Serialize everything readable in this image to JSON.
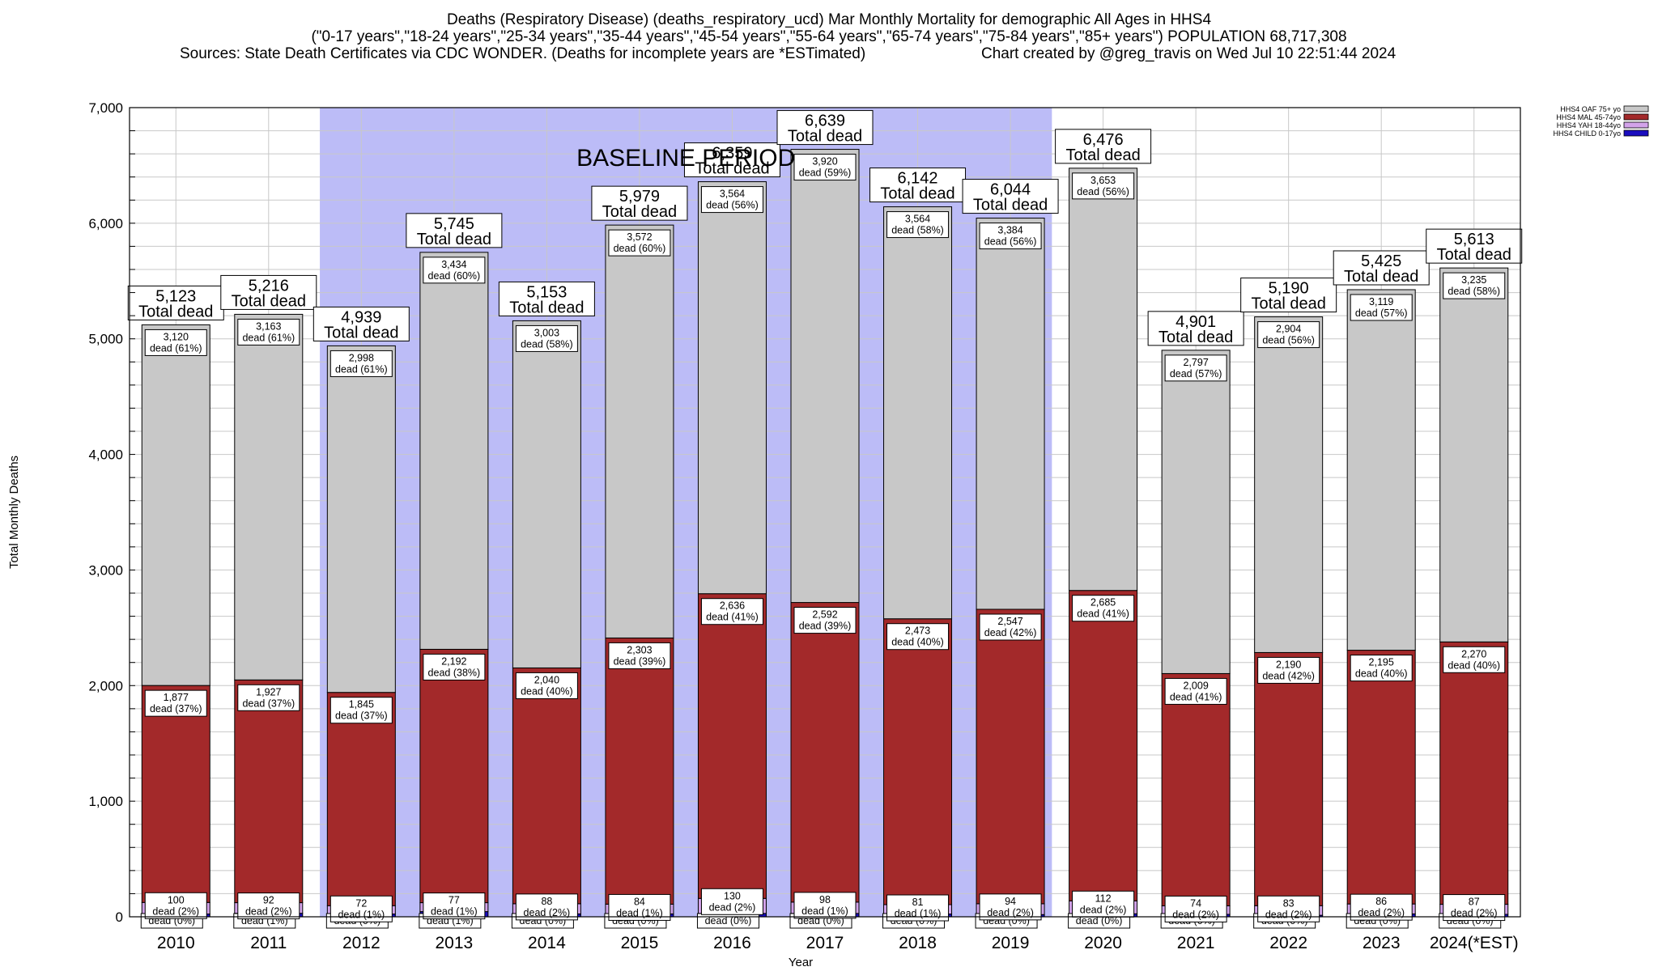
{
  "header": {
    "title": "Deaths (Respiratory Disease) (deaths_respiratory_ucd) Mar Monthly Mortality for demographic All Ages in HHS4",
    "subtitle": "(\"0-17 years\",\"18-24 years\",\"25-34 years\",\"35-44 years\",\"45-54 years\",\"55-64 years\",\"65-74 years\",\"75-84 years\",\"85+ years\") POPULATION 68,717,308",
    "sources": "Sources: State Death Certificates via CDC WONDER. (Deaths for incomplete years are *ESTimated)",
    "created": "Chart created by @greg_travis on Wed Jul 10 22:51:44 2024"
  },
  "colors": {
    "oaf": "#c8c8c8",
    "mal": "#a3292a",
    "yah": "#d3a3ea",
    "child": "#1a0dbf",
    "baseline": "#bcbcf7",
    "grid": "#c8c8c8"
  },
  "chart_data": {
    "type": "bar",
    "stacked": true,
    "xlabel": "Year",
    "ylabel": "Total Monthly Deaths",
    "ylim": [
      0,
      7000
    ],
    "yticks": [
      "0",
      "1,000",
      "2,000",
      "3,000",
      "4,000",
      "5,000",
      "6,000",
      "7,000"
    ],
    "grid": true,
    "legend_position": "top-right",
    "categories": [
      "2010",
      "2011",
      "2012",
      "2013",
      "2014",
      "2015",
      "2016",
      "2017",
      "2018",
      "2019",
      "2020",
      "2021",
      "2022",
      "2023",
      "2024(*EST)"
    ],
    "baseline_label": "BASELINE PERIOD",
    "baseline_range": [
      "2012",
      "2019"
    ],
    "total_suffix": "Total dead",
    "totals": [
      "5,123",
      "5,216",
      "4,939",
      "5,745",
      "5,153",
      "5,979",
      "6,359",
      "6,639",
      "6,142",
      "6,044",
      "6,476",
      "4,901",
      "5,190",
      "5,425",
      "5,613"
    ],
    "series": [
      {
        "name": "HHS4 CHILD 0-17yo",
        "color_key": "child",
        "values": [
          24,
          30,
          24,
          45,
          25,
          25,
          29,
          29,
          24,
          19,
          26,
          21,
          13,
          25,
          21
        ],
        "labels": [
          "",
          "",
          "",
          "",
          "",
          "",
          "",
          "",
          "",
          "",
          "",
          "",
          "",
          "",
          ""
        ],
        "sublabels": [
          "dead (0%)",
          "dead (1%)",
          "dead (0%)",
          "dead (1%)",
          "dead (0%)",
          "dead (0%)",
          "dead (0%)",
          "dead (0%)",
          "dead (0%)",
          "dead (0%)",
          "dead (0%)",
          "dead (0%)",
          "dead (0%)",
          "dead (0%)",
          "dead (0%)"
        ]
      },
      {
        "name": "HHS4 YAH 18-44yo",
        "color_key": "yah",
        "values": [
          100,
          92,
          72,
          77,
          88,
          84,
          130,
          98,
          81,
          94,
          112,
          74,
          83,
          86,
          87
        ],
        "labels": [
          "100",
          "92",
          "72",
          "77",
          "88",
          "84",
          "130",
          "98",
          "81",
          "94",
          "112",
          "74",
          "83",
          "86",
          "87"
        ],
        "sublabels": [
          "dead (2%)",
          "dead (2%)",
          "dead (1%)",
          "dead (1%)",
          "dead (2%)",
          "dead (1%)",
          "dead (2%)",
          "dead (1%)",
          "dead (1%)",
          "dead (2%)",
          "dead (2%)",
          "dead (2%)",
          "dead (2%)",
          "dead (2%)",
          "dead (2%)"
        ]
      },
      {
        "name": "HHS4 MAL 45-74yo",
        "color_key": "mal",
        "values": [
          1877,
          1927,
          1845,
          2192,
          2040,
          2303,
          2636,
          2592,
          2473,
          2547,
          2685,
          2009,
          2190,
          2195,
          2270
        ],
        "labels": [
          "1,877",
          "1,927",
          "1,845",
          "2,192",
          "2,040",
          "2,303",
          "2,636",
          "2,592",
          "2,473",
          "2,547",
          "2,685",
          "2,009",
          "2,190",
          "2,195",
          "2,270"
        ],
        "sublabels": [
          "dead (37%)",
          "dead (37%)",
          "dead (37%)",
          "dead (38%)",
          "dead (40%)",
          "dead (39%)",
          "dead (41%)",
          "dead (39%)",
          "dead (40%)",
          "dead (42%)",
          "dead (41%)",
          "dead (41%)",
          "dead (42%)",
          "dead (40%)",
          "dead (40%)"
        ]
      },
      {
        "name": "HHS4 OAF 75+ yo",
        "color_key": "oaf",
        "values": [
          3120,
          3163,
          2998,
          3434,
          3003,
          3572,
          3564,
          3920,
          3564,
          3384,
          3653,
          2797,
          2904,
          3119,
          3235
        ],
        "labels": [
          "3,120",
          "3,163",
          "2,998",
          "3,434",
          "3,003",
          "3,572",
          "3,564",
          "3,920",
          "3,564",
          "3,384",
          "3,653",
          "2,797",
          "2,904",
          "3,119",
          "3,235"
        ],
        "sublabels": [
          "dead (61%)",
          "dead (61%)",
          "dead (61%)",
          "dead (60%)",
          "dead (58%)",
          "dead (60%)",
          "dead (56%)",
          "dead (59%)",
          "dead (58%)",
          "dead (56%)",
          "dead (56%)",
          "dead (57%)",
          "dead (56%)",
          "dead (57%)",
          "dead (58%)"
        ]
      }
    ],
    "legend": [
      {
        "label": "HHS4 OAF 75+ yo",
        "color_key": "oaf"
      },
      {
        "label": "HHS4 MAL 45-74yo",
        "color_key": "mal"
      },
      {
        "label": "HHS4 YAH 18-44yo",
        "color_key": "yah"
      },
      {
        "label": "HHS4 CHILD 0-17yo",
        "color_key": "child"
      }
    ]
  }
}
